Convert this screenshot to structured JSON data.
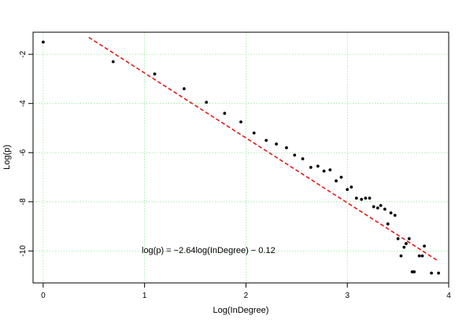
{
  "chart_data": {
    "type": "scatter",
    "xlabel": "Log(InDegree)",
    "ylabel": "Log(p)",
    "xlim": [
      -0.1,
      4.0
    ],
    "ylim": [
      -11.3,
      -1.1
    ],
    "xticks": [
      0,
      1,
      2,
      3,
      4
    ],
    "yticks": [
      -2,
      -4,
      -6,
      -8,
      -10
    ],
    "grid": true,
    "grid_color": "#90ee90",
    "point_color": "#000000",
    "fit_line_color": "#e41a1c",
    "annotation": "log(p) = −2.64log(InDegree) − 0.12",
    "fit": {
      "slope": -2.64,
      "intercept": -0.12,
      "x_range": [
        0.45,
        3.9
      ]
    },
    "points": [
      [
        0.0,
        -1.5
      ],
      [
        0.69,
        -2.3
      ],
      [
        1.1,
        -2.8
      ],
      [
        1.39,
        -3.4
      ],
      [
        1.61,
        -3.95
      ],
      [
        1.79,
        -4.4
      ],
      [
        1.95,
        -4.75
      ],
      [
        2.08,
        -5.2
      ],
      [
        2.2,
        -5.5
      ],
      [
        2.3,
        -5.65
      ],
      [
        2.4,
        -5.8
      ],
      [
        2.48,
        -6.1
      ],
      [
        2.56,
        -6.25
      ],
      [
        2.64,
        -6.6
      ],
      [
        2.71,
        -6.55
      ],
      [
        2.77,
        -6.75
      ],
      [
        2.83,
        -6.7
      ],
      [
        2.89,
        -7.15
      ],
      [
        2.94,
        -7.0
      ],
      [
        3.0,
        -7.5
      ],
      [
        3.04,
        -7.4
      ],
      [
        3.09,
        -7.85
      ],
      [
        3.14,
        -7.9
      ],
      [
        3.18,
        -7.85
      ],
      [
        3.22,
        -7.85
      ],
      [
        3.26,
        -8.2
      ],
      [
        3.3,
        -8.25
      ],
      [
        3.33,
        -8.15
      ],
      [
        3.37,
        -8.3
      ],
      [
        3.4,
        -8.9
      ],
      [
        3.43,
        -8.45
      ],
      [
        3.47,
        -8.55
      ],
      [
        3.5,
        -9.5
      ],
      [
        3.53,
        -10.2
      ],
      [
        3.56,
        -9.85
      ],
      [
        3.58,
        -9.7
      ],
      [
        3.61,
        -9.5
      ],
      [
        3.64,
        -10.85
      ],
      [
        3.66,
        -10.85
      ],
      [
        3.71,
        -10.2
      ],
      [
        3.74,
        -10.2
      ],
      [
        3.76,
        -9.8
      ],
      [
        3.83,
        -10.9
      ],
      [
        3.9,
        -10.9
      ]
    ]
  }
}
